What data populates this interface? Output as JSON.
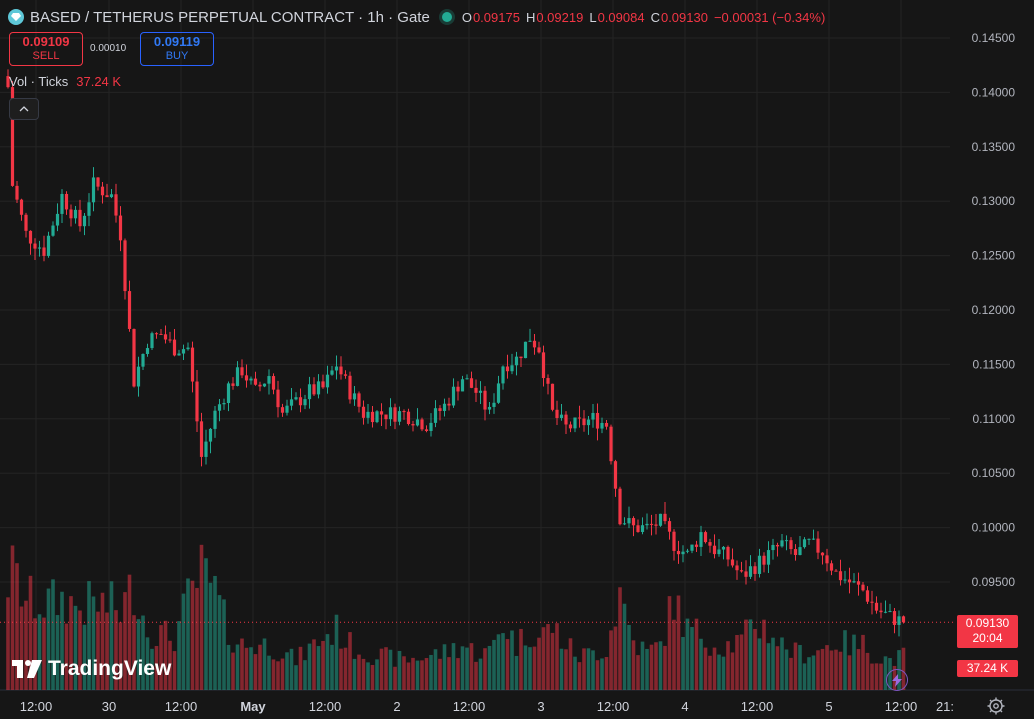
{
  "header": {
    "title": "BASED / TETHERUS PERPETUAL CONTRACT · 1h · Gate",
    "ohlc": [
      {
        "k": "O",
        "v": "0.09175"
      },
      {
        "k": "H",
        "v": "0.09219"
      },
      {
        "k": "L",
        "v": "0.09084"
      },
      {
        "k": "C",
        "v": "0.09130"
      },
      {
        "k": "",
        "v": "−0.00031 (−0.34%)"
      }
    ]
  },
  "trade": {
    "sell_price": "0.09109",
    "sell_label": "SELL",
    "spread": "0.00010",
    "buy_price": "0.09119",
    "buy_label": "BUY"
  },
  "volume_legend": {
    "label": "Vol · Ticks",
    "value": "37.24 K"
  },
  "price_label": {
    "price": "0.09130",
    "countdown": "20:04"
  },
  "volume_label": "37.24 K",
  "logo_text": "TradingView",
  "colors": {
    "up": "#22ab94",
    "down": "#f23645",
    "buy": "#2962ff",
    "background": "#161616"
  },
  "icons": {
    "symbol": "diamond-icon",
    "collapse": "chevron-up-icon",
    "flash": "lightning-icon",
    "settings": "gear-icon"
  },
  "chart_data": {
    "type": "candlestick",
    "interval": "1h",
    "y_ticks": [
      "0.14500",
      "0.14000",
      "0.13500",
      "0.13000",
      "0.12500",
      "0.12000",
      "0.11500",
      "0.11000",
      "0.10500",
      "0.10000",
      "0.09500"
    ],
    "x_ticks": [
      "12:00",
      "30",
      "12:00",
      "May",
      "12:00",
      "2",
      "12:00",
      "3",
      "12:00",
      "4",
      "12:00",
      "5",
      "12:00",
      "21:"
    ],
    "last_price": 0.0913,
    "anchors": [
      [
        0,
        0.1405,
        0.146
      ],
      [
        1,
        0.1315,
        0.157
      ],
      [
        4,
        0.127,
        0.12
      ],
      [
        8,
        0.1255,
        0.115
      ],
      [
        12,
        0.1305,
        0.12
      ],
      [
        16,
        0.1278,
        0.11
      ],
      [
        19,
        0.1315,
        0.115
      ],
      [
        23,
        0.1305,
        0.112
      ],
      [
        25,
        0.127,
        0.105
      ],
      [
        28,
        0.1135,
        0.14
      ],
      [
        31,
        0.1172,
        0.08
      ],
      [
        34,
        0.1178,
        0.075
      ],
      [
        37,
        0.1165,
        0.07
      ],
      [
        40,
        0.1165,
        0.12
      ],
      [
        43,
        0.1065,
        0.155
      ],
      [
        46,
        0.1105,
        0.13
      ],
      [
        49,
        0.113,
        0.075
      ],
      [
        52,
        0.1145,
        0.06
      ],
      [
        55,
        0.1125,
        0.06
      ],
      [
        58,
        0.114,
        0.06
      ],
      [
        61,
        0.1105,
        0.05
      ],
      [
        64,
        0.1115,
        0.04
      ],
      [
        67,
        0.1125,
        0.055
      ],
      [
        70,
        0.1128,
        0.07
      ],
      [
        73,
        0.115,
        0.08
      ],
      [
        76,
        0.1125,
        0.06
      ],
      [
        79,
        0.1105,
        0.05
      ],
      [
        83,
        0.1105,
        0.045
      ],
      [
        88,
        0.1105,
        0.04
      ],
      [
        93,
        0.1095,
        0.045
      ],
      [
        97,
        0.1112,
        0.05
      ],
      [
        101,
        0.1138,
        0.06
      ],
      [
        104,
        0.1125,
        0.05
      ],
      [
        107,
        0.1105,
        0.05
      ],
      [
        110,
        0.115,
        0.09
      ],
      [
        113,
        0.1155,
        0.06
      ],
      [
        116,
        0.1175,
        0.08
      ],
      [
        118,
        0.1165,
        0.07
      ],
      [
        121,
        0.1105,
        0.085
      ],
      [
        124,
        0.1092,
        0.06
      ],
      [
        127,
        0.1095,
        0.045
      ],
      [
        130,
        0.11,
        0.05
      ],
      [
        133,
        0.1095,
        0.055
      ],
      [
        136,
        0.101,
        0.13
      ],
      [
        139,
        0.1,
        0.065
      ],
      [
        142,
        0.1,
        0.05
      ],
      [
        145,
        0.1005,
        0.06
      ],
      [
        148,
        0.0985,
        0.12
      ],
      [
        151,
        0.0975,
        0.08
      ],
      [
        154,
        0.0995,
        0.075
      ],
      [
        157,
        0.098,
        0.06
      ],
      [
        160,
        0.0972,
        0.06
      ],
      [
        163,
        0.0955,
        0.065
      ],
      [
        166,
        0.0965,
        0.09
      ],
      [
        169,
        0.0975,
        0.08
      ],
      [
        172,
        0.0985,
        0.06
      ],
      [
        175,
        0.0975,
        0.05
      ],
      [
        178,
        0.0985,
        0.05
      ],
      [
        181,
        0.0978,
        0.055
      ],
      [
        184,
        0.0958,
        0.065
      ],
      [
        187,
        0.095,
        0.06
      ],
      [
        190,
        0.0942,
        0.06
      ],
      [
        193,
        0.0925,
        0.045
      ],
      [
        196,
        0.0918,
        0.04
      ],
      [
        199,
        0.0913,
        0.045
      ]
    ]
  }
}
